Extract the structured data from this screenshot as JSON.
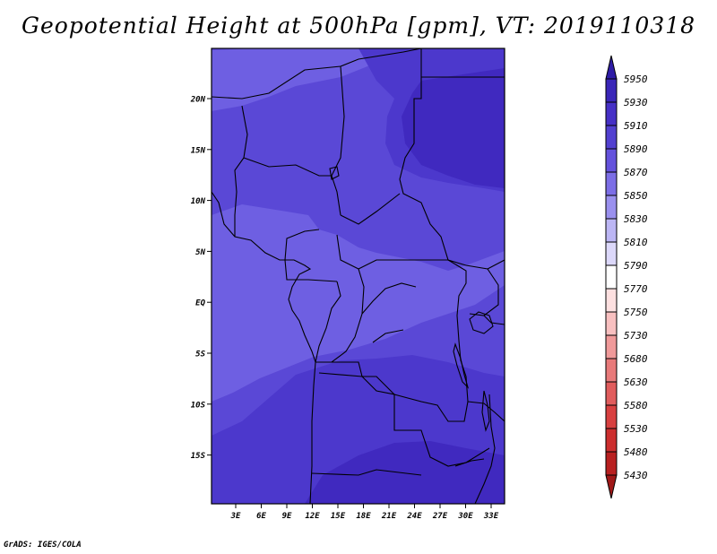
{
  "title": "Geopotential Height at 500hPa [gpm], VT: 2019110318",
  "credit": "GrADS: IGES/COLA",
  "map": {
    "lat_labels": [
      "20N",
      "15N",
      "10N",
      "5N",
      "EQ",
      "5S",
      "10S",
      "15S"
    ],
    "lon_labels": [
      "3E",
      "6E",
      "9E",
      "12E",
      "15E",
      "18E",
      "21E",
      "24E",
      "27E",
      "30E",
      "33E"
    ],
    "fill_colors": {
      "c5850": "#6e5fe2",
      "c5870": "#5a48d6",
      "c5890": "#4c38cc",
      "c5910": "#4029bf"
    }
  },
  "colorbar": {
    "labels": [
      "5950",
      "5930",
      "5910",
      "5890",
      "5870",
      "5850",
      "5830",
      "5810",
      "5790",
      "5770",
      "5750",
      "5730",
      "5680",
      "5630",
      "5580",
      "5530",
      "5480",
      "5430"
    ],
    "colors": [
      "#2e1ca6",
      "#3a26b8",
      "#4630c6",
      "#5240d0",
      "#6452dc",
      "#7c6ee6",
      "#9a90ee",
      "#bcb6f4",
      "#dcd8fa",
      "#ffffff",
      "#fde0e0",
      "#f8c0c0",
      "#f09a9a",
      "#e87a7a",
      "#e05c5c",
      "#d84040",
      "#cc2e2e",
      "#b82020",
      "#a01818"
    ]
  }
}
